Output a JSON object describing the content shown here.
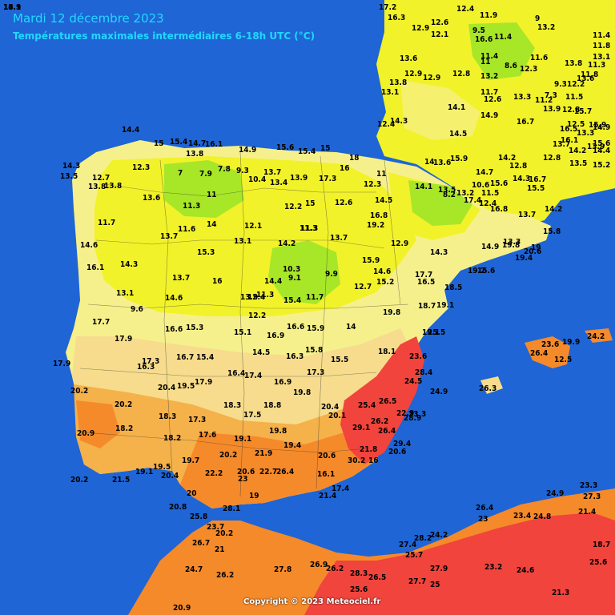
{
  "header": {
    "title": "Mardi 12 décembre 2023",
    "subtitle": "Températures maximales intermédiaires 6-18h UTC (°C)"
  },
  "footer": {
    "copyright": "Copyright © 2023 Meteociel.fr"
  },
  "colors": {
    "sea": "#1a5fd0",
    "t_below_10": "#a8e628",
    "t_10_15": "#f2f22a",
    "t_15_17": "#f6f08c",
    "t_17_20": "#f6dc8c",
    "t_20_22": "#f5b14a",
    "t_22_25": "#f58a2a",
    "t_25_plus": "#f0443c"
  },
  "stations": [
    {
      "label": "14.4"
    },
    {
      "label": "15"
    },
    {
      "label": "15.4"
    },
    {
      "label": "14.7"
    },
    {
      "label": "16.1"
    },
    {
      "label": "14.9"
    },
    {
      "label": "15.6"
    },
    {
      "label": "15.4"
    },
    {
      "label": "15"
    },
    {
      "label": "13.8"
    },
    {
      "label": "12.3"
    },
    {
      "label": "14.3"
    },
    {
      "label": "13.5"
    },
    {
      "label": "12.7"
    },
    {
      "label": "13.8"
    },
    {
      "label": "7"
    },
    {
      "label": "7.9"
    },
    {
      "label": "7.8"
    },
    {
      "label": "9.3"
    },
    {
      "label": "10.4"
    },
    {
      "label": "13.7"
    },
    {
      "label": "13.4"
    },
    {
      "label": "13.9"
    },
    {
      "label": "17.3"
    },
    {
      "label": "16"
    },
    {
      "label": "18"
    },
    {
      "label": "13.6"
    },
    {
      "label": "11"
    },
    {
      "label": "11.3"
    },
    {
      "label": "12.1"
    },
    {
      "label": "11.3"
    },
    {
      "label": "13.8"
    },
    {
      "label": "11.7"
    },
    {
      "label": "12.2"
    },
    {
      "label": "15"
    },
    {
      "label": "12.6"
    },
    {
      "label": "12.3"
    },
    {
      "label": "11"
    },
    {
      "label": "14.5"
    },
    {
      "label": "13.7"
    },
    {
      "label": "11.6"
    },
    {
      "label": "14"
    },
    {
      "label": "13.1"
    },
    {
      "label": "11.3"
    },
    {
      "label": "13.7"
    },
    {
      "label": "16.8"
    },
    {
      "label": "19.2"
    },
    {
      "label": "14.6"
    },
    {
      "label": "15.3"
    },
    {
      "label": "14.3"
    },
    {
      "label": "14.2"
    },
    {
      "label": "12.9"
    },
    {
      "label": "16.1"
    },
    {
      "label": "13.7"
    },
    {
      "label": "16"
    },
    {
      "label": "14.4"
    },
    {
      "label": "10.3"
    },
    {
      "label": "9.1"
    },
    {
      "label": "9.9"
    },
    {
      "label": "15.9"
    },
    {
      "label": "14.6"
    },
    {
      "label": "15.2"
    },
    {
      "label": "12.7"
    },
    {
      "label": "13.1"
    },
    {
      "label": "14.6"
    },
    {
      "label": "9.6"
    },
    {
      "label": "13.9"
    },
    {
      "label": "12.4"
    },
    {
      "label": "11.7"
    },
    {
      "label": "11.3"
    },
    {
      "label": "12.2"
    },
    {
      "label": "15.4"
    },
    {
      "label": "17.7"
    },
    {
      "label": "16.6"
    },
    {
      "label": "15.3"
    },
    {
      "label": "15.1"
    },
    {
      "label": "16.9"
    },
    {
      "label": "16.6"
    },
    {
      "label": "15.9"
    },
    {
      "label": "14"
    },
    {
      "label": "19.8"
    },
    {
      "label": "19.1"
    },
    {
      "label": "17.9"
    },
    {
      "label": "16.7"
    },
    {
      "label": "15.4"
    },
    {
      "label": "14.5"
    },
    {
      "label": "16.3"
    },
    {
      "label": "15.8"
    },
    {
      "label": "15.5"
    },
    {
      "label": "18.1"
    },
    {
      "label": "17.9"
    },
    {
      "label": "17.3"
    },
    {
      "label": "16.3"
    },
    {
      "label": "16.4"
    },
    {
      "label": "17.4"
    },
    {
      "label": "16.9"
    },
    {
      "label": "17.3"
    },
    {
      "label": "20.2"
    },
    {
      "label": "20.4"
    },
    {
      "label": "19.5"
    },
    {
      "label": "17.9"
    },
    {
      "label": "19.8"
    },
    {
      "label": "20.2"
    },
    {
      "label": "18.3"
    },
    {
      "label": "17.3"
    },
    {
      "label": "18.3"
    },
    {
      "label": "17.5"
    },
    {
      "label": "18.8"
    },
    {
      "label": "20.4"
    },
    {
      "label": "20.1"
    },
    {
      "label": "18.2"
    },
    {
      "label": "18.2"
    },
    {
      "label": "17.6"
    },
    {
      "label": "19.1"
    },
    {
      "label": "19.8"
    },
    {
      "label": "19.4"
    },
    {
      "label": "20.9"
    },
    {
      "label": "19.5"
    },
    {
      "label": "19.7"
    },
    {
      "label": "20.2"
    },
    {
      "label": "21.9"
    },
    {
      "label": "20.6"
    },
    {
      "label": "20.2"
    },
    {
      "label": "21.5"
    },
    {
      "label": "19.1"
    },
    {
      "label": "20.4"
    },
    {
      "label": "22.2"
    },
    {
      "label": "20.6"
    },
    {
      "label": "23"
    },
    {
      "label": "22.7"
    },
    {
      "label": "26.4"
    },
    {
      "label": "16.1"
    },
    {
      "label": "17.4"
    },
    {
      "label": "21.4"
    },
    {
      "label": "20"
    },
    {
      "label": "20.8"
    },
    {
      "label": "25.8"
    },
    {
      "label": "28.1"
    },
    {
      "label": "19"
    },
    {
      "label": "23.7"
    },
    {
      "label": "20.2"
    },
    {
      "label": "26.7"
    },
    {
      "label": "21"
    },
    {
      "label": "24.7"
    },
    {
      "label": "26.2"
    },
    {
      "label": "27.8"
    },
    {
      "label": "26.9"
    },
    {
      "label": "26.2"
    },
    {
      "label": "28.3"
    },
    {
      "label": "26.5"
    },
    {
      "label": "25.6"
    },
    {
      "label": "27.4"
    },
    {
      "label": "28.2"
    },
    {
      "label": "25.7"
    },
    {
      "label": "24.2"
    },
    {
      "label": "27.7"
    },
    {
      "label": "27.9"
    },
    {
      "label": "25"
    },
    {
      "label": "23.2"
    },
    {
      "label": "24.6"
    },
    {
      "label": "26.4"
    },
    {
      "label": "23"
    },
    {
      "label": "23.4"
    },
    {
      "label": "24.8"
    },
    {
      "label": "24.9"
    },
    {
      "label": "23.3"
    },
    {
      "label": "27.3"
    },
    {
      "label": "21.4"
    },
    {
      "label": "18.7"
    },
    {
      "label": "25.6"
    },
    {
      "label": "21.3"
    },
    {
      "label": "20.9"
    },
    {
      "label": "18.5"
    },
    {
      "label": "19.1"
    },
    {
      "label": "25.5"
    },
    {
      "label": "23.6"
    },
    {
      "label": "28.4"
    },
    {
      "label": "24.5"
    },
    {
      "label": "24.9"
    },
    {
      "label": "25.4"
    },
    {
      "label": "26.5"
    },
    {
      "label": "22.9"
    },
    {
      "label": "23.3"
    },
    {
      "label": "28.9"
    },
    {
      "label": "26.2"
    },
    {
      "label": "26.4"
    },
    {
      "label": "29.1"
    },
    {
      "label": "21.8"
    },
    {
      "label": "29.4"
    },
    {
      "label": "30.2"
    },
    {
      "label": "16"
    },
    {
      "label": "20.6"
    },
    {
      "label": "19.2"
    },
    {
      "label": "17.7"
    },
    {
      "label": "16.5"
    },
    {
      "label": "18.7"
    },
    {
      "label": "26.3"
    },
    {
      "label": "23.6"
    },
    {
      "label": "19.9"
    },
    {
      "label": "24.2"
    },
    {
      "label": "26.4"
    },
    {
      "label": "12.5"
    },
    {
      "label": "13.6"
    },
    {
      "label": "12.9"
    },
    {
      "label": "12.6"
    },
    {
      "label": "12.1"
    },
    {
      "label": "12.4"
    },
    {
      "label": "11.9"
    },
    {
      "label": "9.5"
    },
    {
      "label": "11.4"
    },
    {
      "label": "16.6"
    },
    {
      "label": "9"
    },
    {
      "label": "13.2"
    },
    {
      "label": "11.4"
    },
    {
      "label": "11"
    },
    {
      "label": "8.6"
    },
    {
      "label": "11.6"
    },
    {
      "label": "12.3"
    },
    {
      "label": "13.2"
    },
    {
      "label": "12.8"
    },
    {
      "label": "12.9"
    },
    {
      "label": "12.9"
    },
    {
      "label": "14.1"
    },
    {
      "label": "13.8"
    },
    {
      "label": "13.1"
    },
    {
      "label": "14.3"
    },
    {
      "label": "12.4"
    },
    {
      "label": "11.7"
    },
    {
      "label": "12.6"
    },
    {
      "label": "13.3"
    },
    {
      "label": "11.2"
    },
    {
      "label": "7.3"
    },
    {
      "label": "9.3"
    },
    {
      "label": "12.2"
    },
    {
      "label": "13.6"
    },
    {
      "label": "14.9"
    },
    {
      "label": "16.7"
    },
    {
      "label": "14.5"
    },
    {
      "label": "14.7"
    },
    {
      "label": "15.9"
    },
    {
      "label": "14"
    },
    {
      "label": "13.6"
    },
    {
      "label": "17.4"
    },
    {
      "label": "16.7"
    },
    {
      "label": "15.5"
    },
    {
      "label": "14.1"
    },
    {
      "label": "13.5"
    },
    {
      "label": "13.2"
    },
    {
      "label": "8.2"
    },
    {
      "label": "10.6"
    },
    {
      "label": "11.5"
    },
    {
      "label": "12.4"
    },
    {
      "label": "16.8"
    },
    {
      "label": "13.7"
    },
    {
      "label": "14.2"
    },
    {
      "label": "15.8"
    },
    {
      "label": "14.9"
    },
    {
      "label": "19.8"
    },
    {
      "label": "19.4"
    },
    {
      "label": "20.6"
    },
    {
      "label": "19"
    },
    {
      "label": "15.6"
    },
    {
      "label": "14.3"
    },
    {
      "label": "13.3"
    },
    {
      "label": "15.2"
    },
    {
      "label": "14.4"
    },
    {
      "label": "13.3"
    },
    {
      "label": "12.5"
    },
    {
      "label": "12.8"
    },
    {
      "label": "11.5"
    },
    {
      "label": "11.3"
    },
    {
      "label": "13.1"
    },
    {
      "label": "11.8"
    },
    {
      "label": "13.8"
    },
    {
      "label": "11.8"
    },
    {
      "label": "11.4"
    },
    {
      "label": "13.9"
    },
    {
      "label": "15.7"
    },
    {
      "label": "15.9"
    },
    {
      "label": "14.9"
    },
    {
      "label": "15.6"
    },
    {
      "label": "13.9"
    },
    {
      "label": "14.2"
    },
    {
      "label": "13.5"
    },
    {
      "label": "12.8"
    },
    {
      "label": "13.7"
    },
    {
      "label": "16.1"
    },
    {
      "label": "16.5"
    },
    {
      "label": "14.2"
    },
    {
      "label": "12.8"
    },
    {
      "label": "14.3"
    },
    {
      "label": "15.6"
    },
    {
      "label": "17.2"
    },
    {
      "label": "16.3"
    },
    {
      "label": "14.1"
    },
    {
      "label": "15"
    },
    {
      "label": "18.9"
    },
    {
      "label": "16.3"
    }
  ]
}
